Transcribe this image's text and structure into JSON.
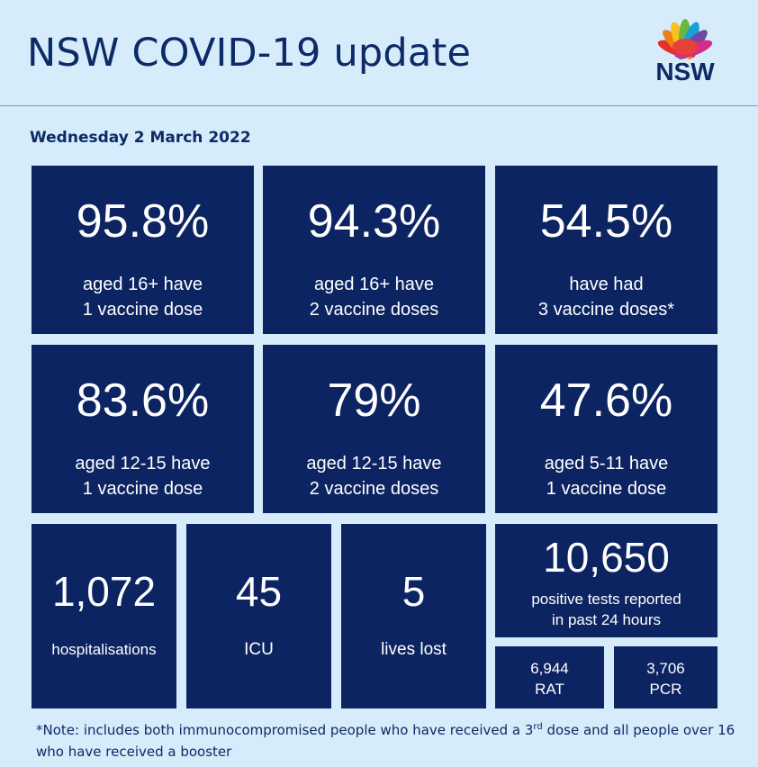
{
  "header": {
    "title": "NSW COVID-19 update",
    "logo_text": "NSW",
    "date": "Wednesday 2 March 2022"
  },
  "vaccination": [
    {
      "value": "95.8%",
      "line1": "aged 16+ have",
      "line2": "1 vaccine dose"
    },
    {
      "value": "94.3%",
      "line1": "aged 16+ have",
      "line2": "2 vaccine doses"
    },
    {
      "value": "54.5%",
      "line1": "have had",
      "line2": "3 vaccine doses*"
    },
    {
      "value": "83.6%",
      "line1": "aged 12-15 have",
      "line2": "1 vaccine dose"
    },
    {
      "value": "79%",
      "line1": "aged 12-15 have",
      "line2": "2 vaccine doses"
    },
    {
      "value": "47.6%",
      "line1": "aged 5-11 have",
      "line2": "1 vaccine dose"
    }
  ],
  "stats": {
    "hospitalisations": {
      "value": "1,072",
      "label": "hospitalisations"
    },
    "icu": {
      "value": "45",
      "label": "ICU"
    },
    "deaths": {
      "value": "5",
      "label": "lives lost"
    },
    "positive": {
      "value": "10,650",
      "line1": "positive tests reported",
      "line2": "in past 24 hours"
    },
    "rat": {
      "value": "6,944",
      "label": "RAT"
    },
    "pcr": {
      "value": "3,706",
      "label": "PCR"
    }
  },
  "note": {
    "part1": "*Note: includes both immunocompromised people who have received a 3",
    "sup": "rd",
    "part2": " dose and all people over 16 who have received a booster"
  },
  "colors": {
    "tile": "#0c2461",
    "background": "#d6ecfb",
    "text": "#0d2a66"
  }
}
